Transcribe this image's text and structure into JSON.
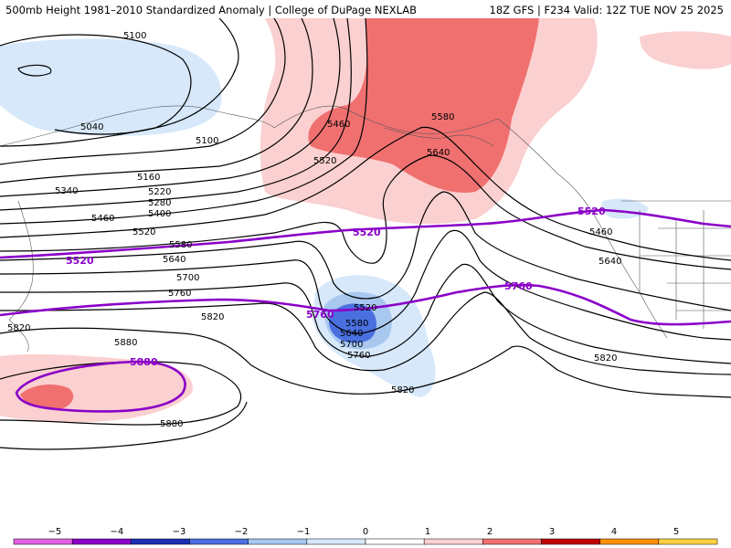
{
  "header": {
    "left": "500mb Height 1981–2010 Standardized Anomaly | College of DuPage NEXLAB",
    "right": "18Z GFS | F234 Valid: 12Z TUE NOV 25 2025"
  },
  "contour_labels": {
    "c5100a": "5100",
    "c5100b": "5100",
    "c5040": "5040",
    "c5160": "5160",
    "c5220": "5220",
    "c5280": "5280",
    "c5340": "5340",
    "c5400": "5400",
    "c5460a": "5460",
    "c5460b": "5460",
    "c5460c": "5460",
    "c5520a": "5520",
    "c5520b": "5520",
    "c5520c": "5520",
    "c5580a": "5580",
    "c5580b": "5580",
    "c5580c": "5580",
    "c5640a": "5640",
    "c5640b": "5640",
    "c5640c": "5640",
    "c5640d": "5640",
    "c5700a": "5700",
    "c5700b": "5700",
    "c5760a": "5760",
    "c5760b": "5760",
    "c5820a": "5820",
    "c5820b": "5820",
    "c5820c": "5820",
    "c5820d": "5820",
    "c5880a": "5880",
    "c5880b": "5880"
  },
  "climo_labels": {
    "p5520a": "5520",
    "p5520b": "5520",
    "p5520c": "5520",
    "p5760a": "5760",
    "p5760b": "5760",
    "p5880": "5880"
  },
  "colorbar": {
    "ticks": [
      "−5",
      "−4",
      "−3",
      "−2",
      "−1",
      "0",
      "1",
      "2",
      "3",
      "4",
      "5"
    ],
    "colors": [
      "#e060e0",
      "#8a00c8",
      "#1a2fb0",
      "#4a70e0",
      "#a8c8f0",
      "#d6e8fa",
      "#ffffff",
      "#fbd0d0",
      "#f07070",
      "#c00000",
      "#ff9000",
      "#ffd040"
    ]
  },
  "colors": {
    "climo": "#8a00c8",
    "contour": "#000000"
  }
}
